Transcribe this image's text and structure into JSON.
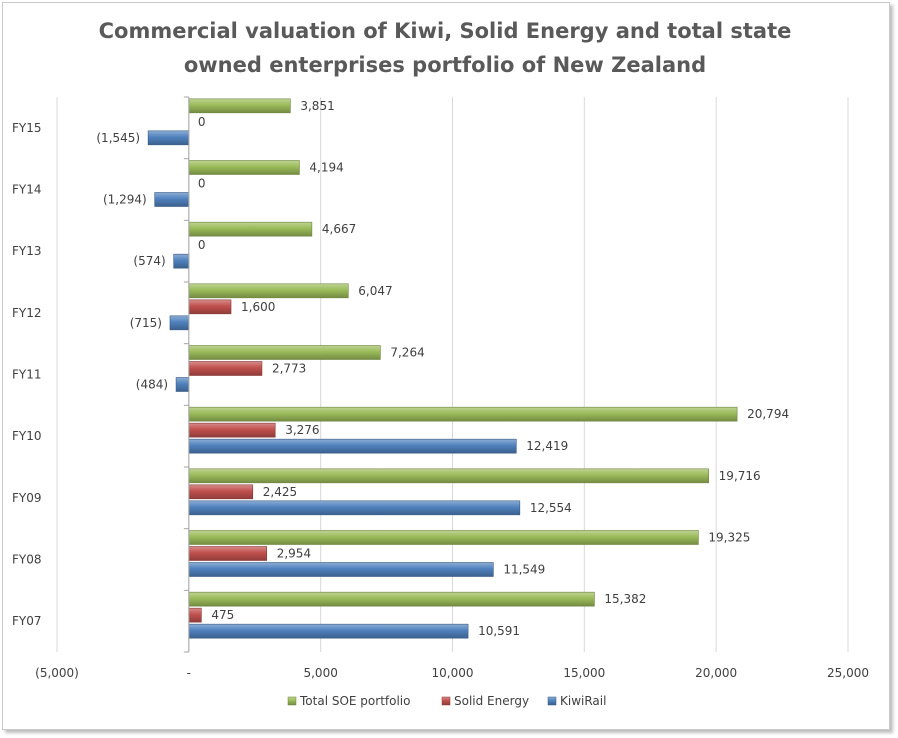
{
  "chart_data": {
    "type": "bar",
    "orientation": "horizontal",
    "title_lines": [
      "Commercial valuation of Kiwi, Solid Energy and total state",
      "owned enterprises portfolio of New Zealand"
    ],
    "categories": [
      "FY07",
      "FY08",
      "FY09",
      "FY10",
      "FY11",
      "FY12",
      "FY13",
      "FY14",
      "FY15"
    ],
    "series": [
      {
        "name": "Total SOE portfolio",
        "color": "#9bbb59",
        "values": [
          15382,
          19325,
          19716,
          20794,
          7264,
          6047,
          4667,
          4194,
          3851
        ],
        "labels": [
          "15,382",
          "19,325",
          "19,716",
          "20,794",
          "7,264",
          "6,047",
          "4,667",
          "4,194",
          "3,851"
        ]
      },
      {
        "name": "Solid Energy",
        "color": "#c0504d",
        "values": [
          475,
          2954,
          2425,
          3276,
          2773,
          1600,
          0,
          0,
          0
        ],
        "labels": [
          "475",
          "2,954",
          "2,425",
          "3,276",
          "2,773",
          "1,600",
          "0",
          "0",
          "0"
        ]
      },
      {
        "name": "KiwiRail",
        "color": "#4f81bd",
        "values": [
          10591,
          11549,
          12554,
          12419,
          -484,
          -715,
          -574,
          -1294,
          -1545
        ],
        "labels": [
          "10,591",
          "11,549",
          "12,554",
          "12,419",
          "(484)",
          "(715)",
          "(574)",
          "(1,294)",
          "(1,545)"
        ]
      }
    ],
    "xlim": [
      -5000,
      25000
    ],
    "xticks": [
      -5000,
      0,
      5000,
      10000,
      15000,
      20000,
      25000
    ],
    "xtick_labels": [
      "(5,000)",
      "-",
      "5,000",
      "10,000",
      "15,000",
      "20,000",
      "25,000"
    ],
    "grid": true,
    "legend_position": "bottom"
  }
}
